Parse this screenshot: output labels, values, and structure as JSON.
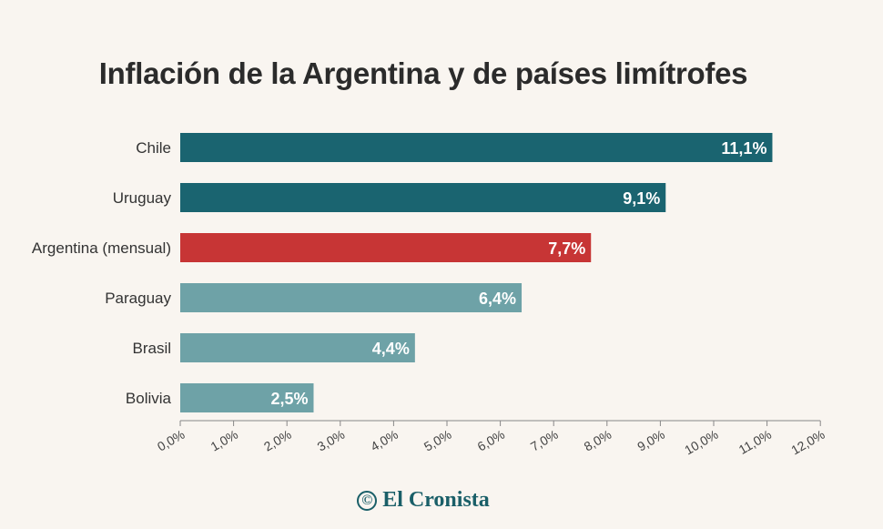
{
  "chart_data": {
    "type": "bar",
    "orientation": "horizontal",
    "title": "Inflación de la Argentina y de países limítrofes",
    "categories": [
      "Chile",
      "Uruguay",
      "Argentina (mensual)",
      "Paraguay",
      "Brasil",
      "Bolivia"
    ],
    "values": [
      11.1,
      9.1,
      7.7,
      6.4,
      4.4,
      2.5
    ],
    "value_labels": [
      "11,1%",
      "9,1%",
      "7,7%",
      "6,4%",
      "4,4%",
      "2,5%"
    ],
    "colors": [
      "#1a6470",
      "#1a6470",
      "#c73535",
      "#6ea2a7",
      "#6ea2a7",
      "#6ea2a7"
    ],
    "xlim": [
      0,
      12
    ],
    "x_ticks": [
      0,
      1,
      2,
      3,
      4,
      5,
      6,
      7,
      8,
      9,
      10,
      11,
      12
    ],
    "x_tick_labels": [
      "0,0%",
      "1,0%",
      "2,0%",
      "3,0%",
      "4,0%",
      "5,0%",
      "6,0%",
      "7,0%",
      "8,0%",
      "9,0%",
      "10,0%",
      "11,0%",
      "12,0%"
    ],
    "xlabel": "",
    "ylabel": "",
    "grid": false,
    "legend": "none"
  },
  "footer": {
    "logo_icon": "©",
    "logo_text": "El Cronista"
  }
}
